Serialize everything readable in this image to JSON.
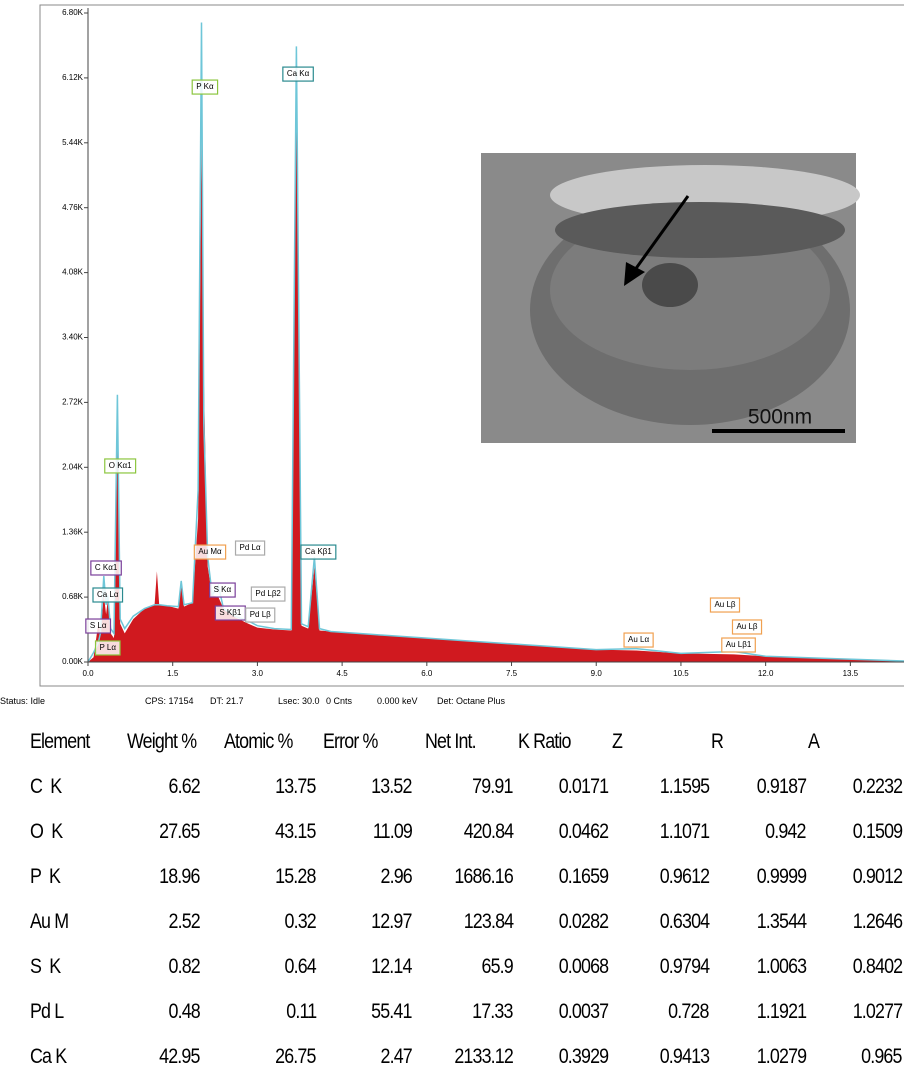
{
  "chart_data": {
    "type": "spectrum",
    "x": [
      0.0,
      0.1,
      0.18,
      0.22,
      0.28,
      0.32,
      0.35,
      0.4,
      0.46,
      0.52,
      0.57,
      0.65,
      0.8,
      1.0,
      1.18,
      1.22,
      1.26,
      1.4,
      1.6,
      1.65,
      1.7,
      1.85,
      1.95,
      2.01,
      2.05,
      2.12,
      2.2,
      2.31,
      2.4,
      2.6,
      2.84,
      3.0,
      3.3,
      3.6,
      3.69,
      3.78,
      3.9,
      4.01,
      4.1,
      4.3,
      5.0,
      6.0,
      7.0,
      8.0,
      9.0,
      9.71,
      10.5,
      11.44,
      12.0,
      13.0,
      14.0,
      14.45
    ],
    "series": [
      {
        "color": "#d0191f",
        "values": [
          0,
          50,
          400,
          300,
          700,
          500,
          650,
          300,
          250,
          2350,
          400,
          300,
          450,
          560,
          600,
          950,
          600,
          590,
          560,
          800,
          580,
          620,
          1500,
          5600,
          3000,
          1000,
          700,
          680,
          560,
          470,
          400,
          360,
          340,
          330,
          6150,
          380,
          350,
          1000,
          330,
          320,
          290,
          250,
          210,
          170,
          130,
          120,
          90,
          80,
          60,
          40,
          20,
          10
        ]
      },
      {
        "color": "#6ec6d8",
        "values": [
          0,
          100,
          200,
          300,
          900,
          600,
          700,
          350,
          300,
          2800,
          450,
          350,
          480,
          560,
          600,
          600,
          600,
          590,
          580,
          850,
          600,
          620,
          1800,
          6700,
          2500,
          1100,
          700,
          800,
          560,
          480,
          430,
          380,
          350,
          340,
          6450,
          400,
          370,
          1100,
          350,
          320,
          290,
          250,
          210,
          170,
          130,
          140,
          90,
          110,
          60,
          40,
          20,
          10
        ]
      }
    ],
    "xlim": [
      0,
      14.45
    ],
    "ylim": [
      0,
      6800
    ],
    "xticks": [
      {
        "value": 0,
        "label": "0.0"
      },
      1.5,
      {
        "value": 3,
        "label": "3.0"
      },
      4.5,
      {
        "value": 6,
        "label": "6.0"
      },
      7.5,
      {
        "value": 9,
        "label": "9.0"
      },
      10.5,
      {
        "value": 12,
        "label": "12.0"
      },
      13.5
    ],
    "yticks": [
      {
        "value": 0,
        "label": "0.00K"
      },
      {
        "value": 680,
        "label": "0.68K"
      },
      {
        "value": 1360,
        "label": "1.36K"
      },
      {
        "value": 2040,
        "label": "2.04K"
      },
      {
        "value": 2720,
        "label": "2.72K"
      },
      {
        "value": 3400,
        "label": "3.40K"
      },
      {
        "value": 4080,
        "label": "4.08K"
      },
      {
        "value": 4760,
        "label": "4.76K"
      },
      {
        "value": 5440,
        "label": "5.44K"
      },
      {
        "value": 6120,
        "label": "6.12K"
      },
      {
        "value": 6800,
        "label": "6.80K"
      }
    ],
    "annotations": [
      {
        "text": "P  Kα",
        "x": 2.07,
        "y": 6024,
        "color": "#8cc63f"
      },
      {
        "text": "Ca Kα",
        "x": 3.72,
        "y": 6160,
        "color": "#2a8a8f"
      },
      {
        "text": "O  Kα1",
        "x": 0.57,
        "y": 2054,
        "color": "#8cc63f"
      },
      {
        "text": "Au Mα",
        "x": 2.16,
        "y": 1152,
        "color": "#f0a050"
      },
      {
        "text": "Pd Lα",
        "x": 2.87,
        "y": 1194,
        "color": "#aaaaaa"
      },
      {
        "text": "Ca Kβ1",
        "x": 4.08,
        "y": 1152,
        "color": "#2a8a8f"
      },
      {
        "text": "C  Kα1",
        "x": 0.32,
        "y": 985,
        "color": "#7a3f9a"
      },
      {
        "text": "S  Kα",
        "x": 2.38,
        "y": 754,
        "color": "#7a3f9a"
      },
      {
        "text": "Ca Lα",
        "x": 0.35,
        "y": 702,
        "color": "#2a8a8f"
      },
      {
        "text": "Pd Lβ2",
        "x": 3.19,
        "y": 712,
        "color": "#aaaaaa"
      },
      {
        "text": "S  Kβ1",
        "x": 2.52,
        "y": 513,
        "color": "#7a3f9a"
      },
      {
        "text": "Pd Lβ",
        "x": 3.05,
        "y": 492,
        "color": "#aaaaaa"
      },
      {
        "text": "S  Lα",
        "x": 0.18,
        "y": 377,
        "color": "#7a3f9a"
      },
      {
        "text": "P  Lα",
        "x": 0.35,
        "y": 147,
        "color": "#8cc63f"
      },
      {
        "text": "Au Lα",
        "x": 9.75,
        "y": 230,
        "color": "#f0a050"
      },
      {
        "text": "Au Lβ",
        "x": 11.28,
        "y": 597,
        "color": "#f0a050"
      },
      {
        "text": "Au Lβ",
        "x": 11.67,
        "y": 367,
        "color": "#f0a050"
      },
      {
        "text": "Au Lβ1",
        "x": 11.52,
        "y": 178,
        "color": "#f0a050"
      }
    ]
  },
  "inset": {
    "scale_bar": "500nm"
  },
  "status_bar": [
    "Status: Idle",
    "CPS: 17154",
    "DT: 21.7",
    "Lsec: 30.0",
    "0 Cnts",
    "0.000 keV",
    "Det: Octane Plus"
  ],
  "table": {
    "header": [
      "Element",
      "Weight %",
      "Atomic %",
      "Error %",
      "Net Int.",
      "K Ratio",
      "Z",
      "R",
      "A"
    ],
    "rows": [
      [
        "C  K",
        6.62,
        13.75,
        13.52,
        79.91,
        0.0171,
        1.1595,
        0.9187,
        0.2232
      ],
      [
        "O  K",
        27.65,
        43.15,
        11.09,
        420.84,
        0.0462,
        1.1071,
        0.942,
        0.1509
      ],
      [
        "P  K",
        18.96,
        15.28,
        2.96,
        1686.16,
        0.1659,
        0.9612,
        0.9999,
        0.9012
      ],
      [
        "Au M",
        2.52,
        0.32,
        12.97,
        123.84,
        0.0282,
        0.6304,
        1.3544,
        1.2646
      ],
      [
        "S  K",
        0.82,
        0.64,
        12.14,
        65.9,
        0.0068,
        0.9794,
        1.0063,
        0.8402
      ],
      [
        "Pd L",
        0.48,
        0.11,
        55.41,
        17.33,
        0.0037,
        0.728,
        1.1921,
        1.0277
      ],
      [
        "Ca K",
        42.95,
        26.75,
        2.47,
        2133.12,
        0.3929,
        0.9413,
        1.0279,
        0.965
      ]
    ]
  }
}
